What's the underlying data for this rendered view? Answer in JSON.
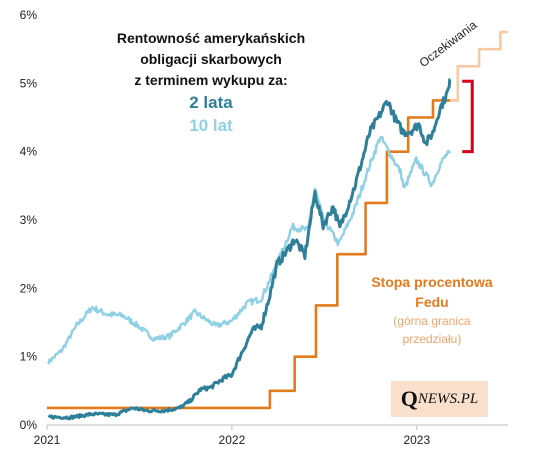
{
  "title_lines": [
    "Rentowność amerykańskich",
    "obligacji  skarbowych",
    "z terminem wykupu za:"
  ],
  "legend": {
    "two_year": "2 lata",
    "ten_year": "10 lat"
  },
  "fed_label": {
    "title_line1": "Stopa procentowa",
    "title_line2": "Fedu",
    "sub_line1": "(górna granica",
    "sub_line2": "przedziału)"
  },
  "expectations_label": "Oczekiwania",
  "logo": {
    "q": "Q",
    "rest": "NEWS.PL"
  },
  "colors": {
    "two_year": "#2e7f98",
    "ten_year": "#8fd0e4",
    "fed": "#e37a1c",
    "expectations": "#f7c9a5",
    "bracket": "#d9001b"
  },
  "chart_data": {
    "type": "line",
    "x_axis": {
      "type": "time",
      "min": "2021-01-01",
      "max": "2023-06-30",
      "tick_labels": [
        "2021",
        "2022",
        "2023"
      ]
    },
    "y_axis": {
      "min": 0,
      "max": 6,
      "ticks": [
        0,
        1,
        2,
        3,
        4,
        5,
        6
      ],
      "tick_labels": [
        "0%",
        "1%",
        "2%",
        "3%",
        "4%",
        "5%",
        "6%"
      ]
    },
    "series": [
      {
        "name": "2 lata",
        "color": "#2e7f98",
        "points": [
          [
            "2021-01-04",
            0.12
          ],
          [
            "2021-02-15",
            0.11
          ],
          [
            "2021-03-31",
            0.16
          ],
          [
            "2021-05-15",
            0.15
          ],
          [
            "2021-06-20",
            0.25
          ],
          [
            "2021-07-15",
            0.21
          ],
          [
            "2021-08-20",
            0.21
          ],
          [
            "2021-09-20",
            0.25
          ],
          [
            "2021-10-10",
            0.35
          ],
          [
            "2021-10-31",
            0.52
          ],
          [
            "2021-11-20",
            0.55
          ],
          [
            "2021-12-15",
            0.68
          ],
          [
            "2021-12-31",
            0.73
          ],
          [
            "2022-01-20",
            1.05
          ],
          [
            "2022-02-10",
            1.38
          ],
          [
            "2022-02-28",
            1.45
          ],
          [
            "2022-03-15",
            1.85
          ],
          [
            "2022-03-31",
            2.35
          ],
          [
            "2022-04-20",
            2.55
          ],
          [
            "2022-05-05",
            2.72
          ],
          [
            "2022-05-25",
            2.48
          ],
          [
            "2022-06-14",
            3.4
          ],
          [
            "2022-06-30",
            2.92
          ],
          [
            "2022-07-20",
            3.2
          ],
          [
            "2022-08-02",
            2.88
          ],
          [
            "2022-08-31",
            3.48
          ],
          [
            "2022-09-15",
            3.87
          ],
          [
            "2022-09-30",
            4.28
          ],
          [
            "2022-10-21",
            4.55
          ],
          [
            "2022-11-04",
            4.75
          ],
          [
            "2022-11-20",
            4.47
          ],
          [
            "2022-12-05",
            4.28
          ],
          [
            "2022-12-20",
            4.3
          ],
          [
            "2023-01-05",
            4.4
          ],
          [
            "2023-01-19",
            4.12
          ],
          [
            "2023-02-02",
            4.28
          ],
          [
            "2023-02-15",
            4.62
          ],
          [
            "2023-02-28",
            4.82
          ],
          [
            "2023-03-06",
            4.94
          ],
          [
            "2023-03-08",
            5.06
          ]
        ]
      },
      {
        "name": "10 lat",
        "color": "#8fd0e4",
        "points": [
          [
            "2021-01-04",
            0.92
          ],
          [
            "2021-01-31",
            1.1
          ],
          [
            "2021-02-28",
            1.45
          ],
          [
            "2021-03-31",
            1.72
          ],
          [
            "2021-04-30",
            1.62
          ],
          [
            "2021-05-31",
            1.6
          ],
          [
            "2021-06-30",
            1.45
          ],
          [
            "2021-07-31",
            1.26
          ],
          [
            "2021-08-31",
            1.3
          ],
          [
            "2021-09-30",
            1.5
          ],
          [
            "2021-10-20",
            1.65
          ],
          [
            "2021-11-30",
            1.45
          ],
          [
            "2021-12-31",
            1.52
          ],
          [
            "2022-01-31",
            1.78
          ],
          [
            "2022-02-28",
            1.85
          ],
          [
            "2022-03-31",
            2.35
          ],
          [
            "2022-04-30",
            2.9
          ],
          [
            "2022-05-31",
            2.85
          ],
          [
            "2022-06-14",
            3.45
          ],
          [
            "2022-06-30",
            3.02
          ],
          [
            "2022-07-31",
            2.65
          ],
          [
            "2022-08-31",
            3.15
          ],
          [
            "2022-09-30",
            3.8
          ],
          [
            "2022-10-21",
            4.22
          ],
          [
            "2022-11-30",
            3.7
          ],
          [
            "2022-12-07",
            3.45
          ],
          [
            "2022-12-31",
            3.88
          ],
          [
            "2023-01-31",
            3.52
          ],
          [
            "2023-02-15",
            3.8
          ],
          [
            "2023-02-28",
            3.95
          ],
          [
            "2023-03-08",
            3.98
          ]
        ]
      },
      {
        "name": "Stopa procentowa Fedu",
        "color": "#e37a1c",
        "step": true,
        "points": [
          [
            "2021-01-01",
            0.25
          ],
          [
            "2022-03-17",
            0.5
          ],
          [
            "2022-05-05",
            1.0
          ],
          [
            "2022-06-16",
            1.75
          ],
          [
            "2022-07-28",
            2.5
          ],
          [
            "2022-09-22",
            3.25
          ],
          [
            "2022-11-03",
            4.0
          ],
          [
            "2022-12-15",
            4.5
          ],
          [
            "2023-02-02",
            4.75
          ],
          [
            "2023-03-08",
            4.75
          ]
        ]
      },
      {
        "name": "Oczekiwania",
        "color": "#f7c9a5",
        "step": true,
        "points": [
          [
            "2023-03-08",
            4.75
          ],
          [
            "2023-03-23",
            5.25
          ],
          [
            "2023-05-04",
            5.5
          ],
          [
            "2023-06-15",
            5.75
          ],
          [
            "2023-06-30",
            5.75
          ]
        ]
      }
    ],
    "annotation": {
      "type": "bracket",
      "color": "#d9001b",
      "from": 4.0,
      "to": 5.06,
      "at": "2023-03-08"
    }
  }
}
